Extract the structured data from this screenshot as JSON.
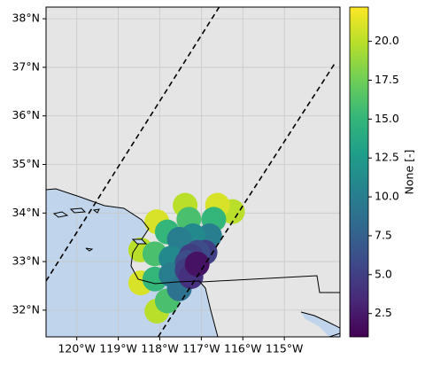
{
  "chart_data": {
    "type": "scatter",
    "colormap": "viridis",
    "colorbar_label": "None [-]",
    "x": [
      -116.25,
      -116.61,
      -117.39,
      -118.07,
      -118.46,
      -118.46,
      -118.07,
      -116.7,
      -117.3,
      -117.82,
      -118.12,
      -118.12,
      -117.82,
      -116.8,
      -117.2,
      -117.53,
      -117.73,
      -117.73,
      -117.53,
      -116.91,
      -117.09,
      -117.25,
      -117.34,
      -117.34,
      -117.25,
      -117.1
    ],
    "y": [
      34.03,
      34.16,
      34.16,
      33.82,
      33.24,
      32.56,
      31.98,
      33.87,
      33.87,
      33.61,
      33.16,
      32.64,
      32.19,
      33.53,
      33.53,
      33.46,
      33.07,
      32.73,
      32.44,
      33.19,
      33.19,
      33.11,
      32.98,
      32.82,
      32.69,
      32.95
    ],
    "values": [
      20,
      21,
      20,
      21,
      20,
      21,
      20,
      15,
      16,
      15,
      16,
      15,
      16,
      10,
      11,
      10,
      11,
      10,
      9,
      5,
      6,
      5,
      6,
      5,
      4,
      2
    ],
    "swath_edges": [
      {
        "x": [
          -120.74,
          -116.57
        ],
        "y": [
          32.6,
          38.24
        ]
      },
      {
        "x": [
          -118.04,
          -113.77
        ],
        "y": [
          31.45,
          37.1
        ]
      }
    ],
    "xlim": [
      -120.74,
      -113.66
    ],
    "ylim": [
      31.45,
      38.24
    ],
    "xticks": [
      {
        "value": -120,
        "label": "120°W"
      },
      {
        "value": -119,
        "label": "119°W"
      },
      {
        "value": -118,
        "label": "118°W"
      },
      {
        "value": -117,
        "label": "117°W"
      },
      {
        "value": -116,
        "label": "116°W"
      },
      {
        "value": -115,
        "label": "115°W"
      }
    ],
    "yticks": [
      {
        "value": 32,
        "label": "32°N"
      },
      {
        "value": 33,
        "label": "33°N"
      },
      {
        "value": 34,
        "label": "34°N"
      },
      {
        "value": 35,
        "label": "35°N"
      },
      {
        "value": 36,
        "label": "36°N"
      },
      {
        "value": 37,
        "label": "37°N"
      },
      {
        "value": 38,
        "label": "38°N"
      }
    ],
    "clim": [
      1.0,
      22.2
    ],
    "cticks": [
      2.5,
      {
        "value": 5.0,
        "label": "5.0"
      },
      7.5,
      {
        "value": 10.0,
        "label": "10.0"
      },
      12.5,
      {
        "value": 15.0,
        "label": "15.0"
      },
      17.5,
      {
        "value": 20.0,
        "label": "20.0"
      }
    ],
    "grid": true
  }
}
